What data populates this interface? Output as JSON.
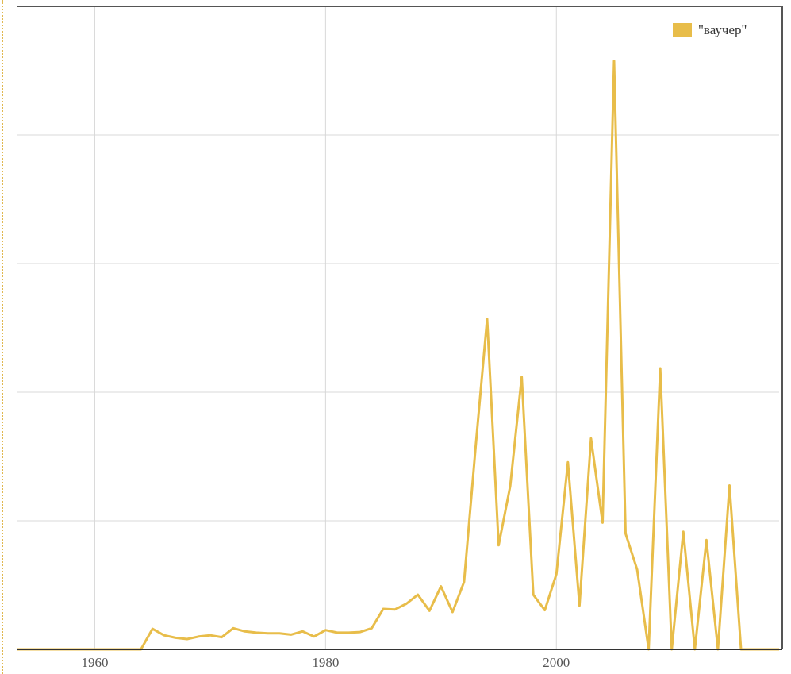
{
  "chart_data": {
    "type": "line",
    "title": "",
    "xlabel": "",
    "ylabel": "",
    "xlim": [
      1953.3,
      2019.3
    ],
    "ylim": [
      0,
      100
    ],
    "grid": true,
    "legend_position": "top-right",
    "x_ticks": [
      1960,
      1980,
      2000
    ],
    "x_tick_labels": [
      "1960",
      "1980",
      "2000"
    ],
    "y_gridlines": [
      0,
      20,
      40,
      60,
      80,
      100
    ],
    "series": [
      {
        "name": "\"ваучер\"",
        "color": "#e8bd4a",
        "x": [
          1953.3,
          1960,
          1964,
          1965,
          1966,
          1967,
          1968,
          1969,
          1970,
          1971,
          1972,
          1973,
          1974,
          1975,
          1976,
          1977,
          1978,
          1979,
          1980,
          1981,
          1982,
          1983,
          1984,
          1985,
          1986,
          1987,
          1988,
          1989,
          1990,
          1991,
          1992,
          1993,
          1994,
          1995,
          1996,
          1997,
          1998,
          1999,
          2000,
          2001,
          2002,
          2003,
          2004,
          2005,
          2006,
          2007,
          2008,
          2009,
          2010,
          2011,
          2012,
          2013,
          2014,
          2015,
          2016,
          2017,
          2018,
          2019.3
        ],
        "y": [
          0,
          0,
          0,
          3.2,
          2.2,
          1.8,
          1.6,
          2.0,
          2.2,
          1.9,
          3.3,
          2.8,
          2.6,
          2.5,
          2.5,
          2.3,
          2.8,
          2.0,
          3.0,
          2.6,
          2.6,
          2.7,
          3.3,
          6.3,
          6.2,
          7.1,
          8.5,
          6.0,
          9.8,
          5.8,
          10.5,
          31.5,
          51.4,
          16.2,
          25.4,
          42.4,
          8.5,
          6.1,
          11.7,
          29.1,
          6.8,
          32.8,
          19.7,
          91.5,
          18.0,
          12.4,
          0,
          43.7,
          0,
          18.3,
          0,
          17.0,
          0,
          25.5,
          0,
          0,
          0,
          0
        ]
      }
    ]
  }
}
